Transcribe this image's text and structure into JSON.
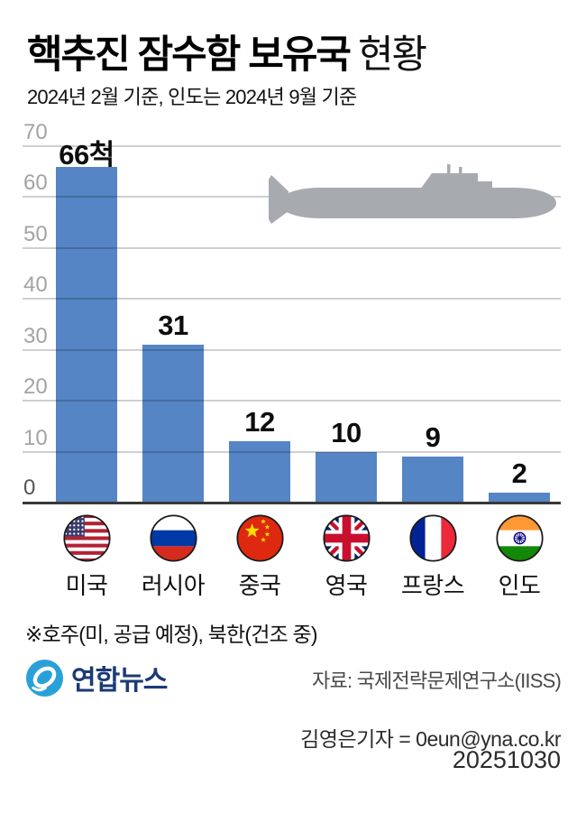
{
  "header": {
    "title_bold": "핵추진 잠수함 보유국",
    "title_light": "현황",
    "subtitle": "2024년 2월 기준, 인도는 2024년 9월 기준"
  },
  "chart_data": {
    "type": "bar",
    "title": "핵추진 잠수함 보유국 현황",
    "categories": [
      "미국",
      "러시아",
      "중국",
      "영국",
      "프랑스",
      "인도"
    ],
    "values": [
      66,
      31,
      12,
      10,
      9,
      2
    ],
    "value_labels": [
      "66척",
      "31",
      "12",
      "10",
      "9",
      "2"
    ],
    "flags": [
      "us",
      "ru",
      "cn",
      "gb",
      "fr",
      "in"
    ],
    "xlabel": "",
    "ylabel": "",
    "ylim": [
      0,
      70
    ],
    "yticks": [
      0,
      10,
      20,
      30,
      40,
      50,
      60,
      70
    ],
    "grid": true,
    "legend": "none",
    "bar_color": "#5585c4"
  },
  "footnote": "※호주(미, 공급 예정), 북한(건조 중)",
  "footer": {
    "logo_text": "연합뉴스",
    "source": "자료: 국제전략문제연구소(IISS)",
    "byline": "김영은기자 = 0eun@yna.co.kr",
    "date": "20251030"
  },
  "colors": {
    "bar": "#5585c4",
    "gridline": "#c9c9c9",
    "baseline": "#383838",
    "tick_label": "#a3a3a3",
    "submarine": "#a7aaaf",
    "logo_blue": "#2aa0d8",
    "logo_navy": "#1b3a75"
  }
}
